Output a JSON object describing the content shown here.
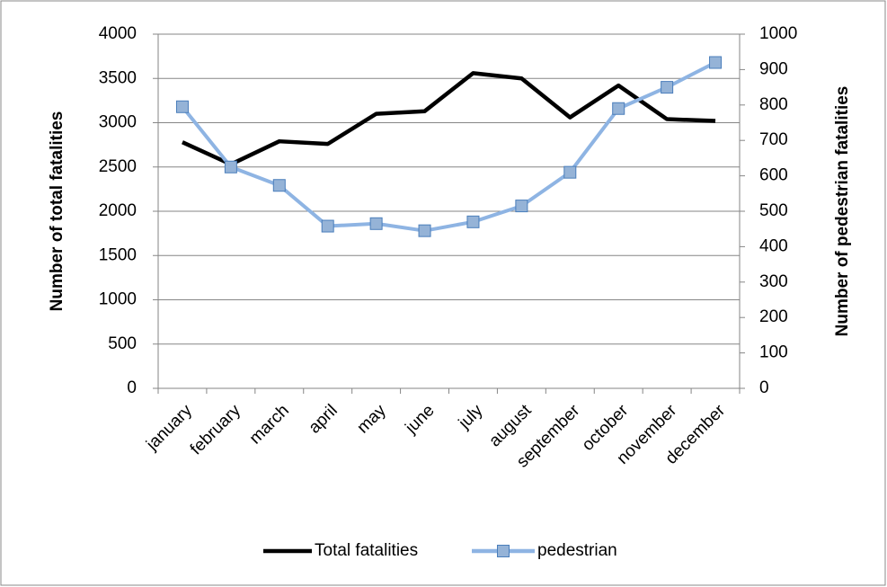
{
  "chart_data": {
    "type": "line",
    "categories": [
      "january",
      "february",
      "march",
      "april",
      "may",
      "june",
      "july",
      "august",
      "september",
      "october",
      "november",
      "december"
    ],
    "series": [
      {
        "name": "Total fatalities",
        "color": "#000000",
        "values": [
          2780,
          2530,
          2790,
          2760,
          3100,
          3130,
          3560,
          3500,
          3060,
          3420,
          3040,
          3020
        ]
      },
      {
        "name": "pedestrian",
        "color": "#8eb4e3",
        "marker_color": "#95b3d7",
        "marker_edge": "#4a7ebb",
        "axis": "y2",
        "values": [
          795,
          625,
          573,
          458,
          465,
          445,
          470,
          515,
          610,
          790,
          850,
          920
        ]
      }
    ],
    "ylabel": "Number of total fatalities",
    "y2label": "Number of pedestrian fatalities",
    "ylim": [
      0,
      4000
    ],
    "yticks": [
      0,
      500,
      1000,
      1500,
      2000,
      2500,
      3000,
      3500,
      4000
    ],
    "y2lim": [
      0,
      1000
    ],
    "y2ticks": [
      0,
      100,
      200,
      300,
      400,
      500,
      600,
      700,
      800,
      900,
      1000
    ],
    "grid": true,
    "legend": "bottom"
  }
}
